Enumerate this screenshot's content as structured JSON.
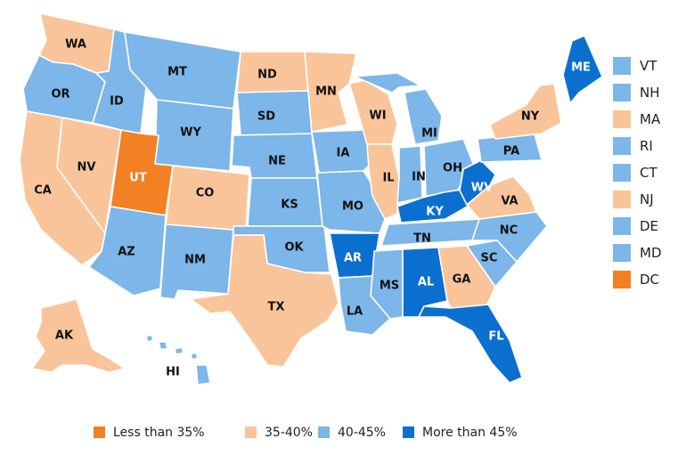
{
  "colors": {
    "less_than_35": "#f28123",
    "35_40": "#f9c49a",
    "40_45": "#7db6e8",
    "more_than_45": "#0b6fcf"
  },
  "legend": [
    {
      "label": "Less than 35%",
      "color": "#f28123"
    },
    {
      "label": "35-40%",
      "color": "#f9c49a"
    },
    {
      "label": "40-45%",
      "color": "#7db6e8"
    },
    {
      "label": "More than 45%",
      "color": "#0b6fcf"
    }
  ],
  "small_states": [
    {
      "abbr": "VT",
      "category": "40_45"
    },
    {
      "abbr": "NH",
      "category": "40_45"
    },
    {
      "abbr": "MA",
      "category": "35_40"
    },
    {
      "abbr": "RI",
      "category": "40_45"
    },
    {
      "abbr": "CT",
      "category": "40_45"
    },
    {
      "abbr": "NJ",
      "category": "35_40"
    },
    {
      "abbr": "DE",
      "category": "40_45"
    },
    {
      "abbr": "MD",
      "category": "40_45"
    },
    {
      "abbr": "DC",
      "category": "less_than_35"
    }
  ],
  "states": [
    {
      "abbr": "WA",
      "category": "35_40"
    },
    {
      "abbr": "OR",
      "category": "40_45"
    },
    {
      "abbr": "CA",
      "category": "35_40"
    },
    {
      "abbr": "NV",
      "category": "35_40"
    },
    {
      "abbr": "ID",
      "category": "40_45"
    },
    {
      "abbr": "MT",
      "category": "40_45"
    },
    {
      "abbr": "WY",
      "category": "40_45"
    },
    {
      "abbr": "UT",
      "category": "less_than_35"
    },
    {
      "abbr": "AZ",
      "category": "40_45"
    },
    {
      "abbr": "CO",
      "category": "35_40"
    },
    {
      "abbr": "NM",
      "category": "40_45"
    },
    {
      "abbr": "ND",
      "category": "35_40"
    },
    {
      "abbr": "SD",
      "category": "40_45"
    },
    {
      "abbr": "NE",
      "category": "40_45"
    },
    {
      "abbr": "KS",
      "category": "40_45"
    },
    {
      "abbr": "OK",
      "category": "40_45"
    },
    {
      "abbr": "TX",
      "category": "35_40"
    },
    {
      "abbr": "MN",
      "category": "35_40"
    },
    {
      "abbr": "IA",
      "category": "40_45"
    },
    {
      "abbr": "MO",
      "category": "40_45"
    },
    {
      "abbr": "AR",
      "category": "more_than_45"
    },
    {
      "abbr": "LA",
      "category": "40_45"
    },
    {
      "abbr": "WI",
      "category": "35_40"
    },
    {
      "abbr": "IL",
      "category": "35_40"
    },
    {
      "abbr": "MI",
      "category": "40_45"
    },
    {
      "abbr": "IN",
      "category": "40_45"
    },
    {
      "abbr": "OH",
      "category": "40_45"
    },
    {
      "abbr": "KY",
      "category": "more_than_45"
    },
    {
      "abbr": "TN",
      "category": "40_45"
    },
    {
      "abbr": "MS",
      "category": "40_45"
    },
    {
      "abbr": "AL",
      "category": "more_than_45"
    },
    {
      "abbr": "GA",
      "category": "35_40"
    },
    {
      "abbr": "FL",
      "category": "more_than_45"
    },
    {
      "abbr": "SC",
      "category": "40_45"
    },
    {
      "abbr": "NC",
      "category": "40_45"
    },
    {
      "abbr": "VA",
      "category": "35_40"
    },
    {
      "abbr": "WV",
      "category": "more_than_45"
    },
    {
      "abbr": "PA",
      "category": "40_45"
    },
    {
      "abbr": "NY",
      "category": "35_40"
    },
    {
      "abbr": "ME",
      "category": "more_than_45"
    },
    {
      "abbr": "AK",
      "category": "35_40"
    },
    {
      "abbr": "HI",
      "category": "40_45"
    }
  ]
}
